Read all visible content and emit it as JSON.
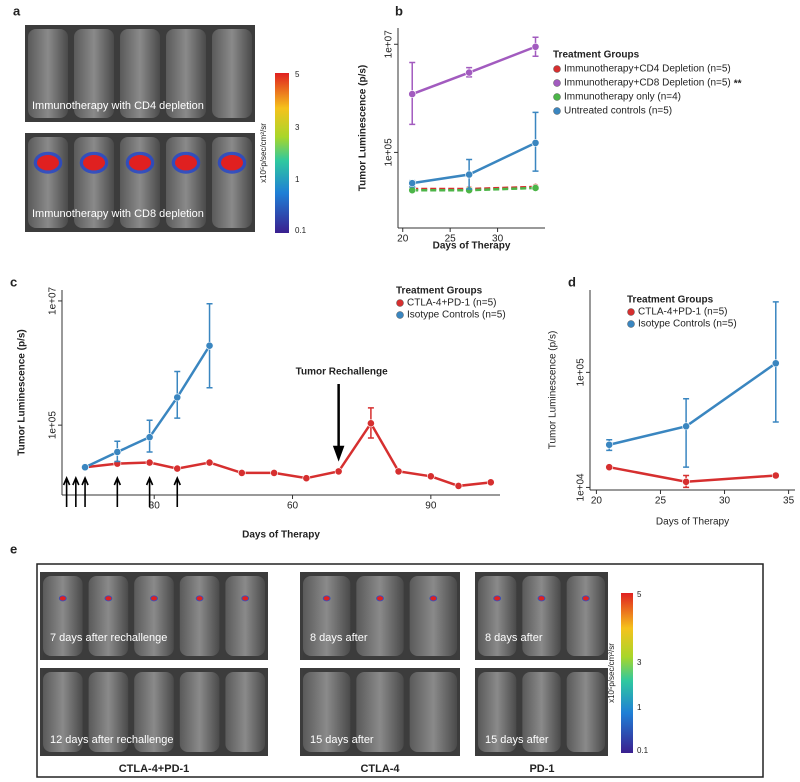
{
  "panel_labels": [
    "a",
    "b",
    "c",
    "d",
    "e"
  ],
  "panel_a": {
    "captions": [
      "Immunotherapy with CD4 depletion",
      "Immunotherapy with CD8 depletion"
    ],
    "colorbar": {
      "label": "x10⁵p/sec/cm²/sr",
      "ticks": [
        "5",
        "3",
        "1",
        "0.1"
      ]
    }
  },
  "chart_data": [
    {
      "type": "line",
      "log_y": true,
      "y_label": "Tumor Luminescence (p/s)",
      "x_label": "Days of Therapy",
      "legend_title": "Treatment Groups",
      "x": [
        21,
        27,
        34
      ],
      "xlim": [
        19.5,
        35
      ],
      "xticks": [
        20,
        25,
        30
      ],
      "ylim": [
        4000,
        20000000
      ],
      "yticks": [
        {
          "value": 100000,
          "label": "1e+05"
        },
        {
          "value": 10000000,
          "label": "1e+07"
        }
      ],
      "series": [
        {
          "name": "Immunotherapy+CD4 Depletion (n=5)",
          "color": "#d62f2f",
          "linestyle": "dashed",
          "values": [
            21000,
            21000,
            23000
          ]
        },
        {
          "name": "Immunotherapy+CD8 Depletion (n=5)",
          "color": "#a25bbf",
          "annotation": "**",
          "values": [
            1200000,
            3000000,
            9000000
          ],
          "error_bars": [
            [
              330000,
              4600000
            ],
            [
              2500000,
              3700000
            ],
            [
              6000000,
              13500000
            ]
          ]
        },
        {
          "name": "Immunotherapy only (n=4)",
          "color": "#4cb548",
          "linestyle": "dashed",
          "values": [
            20000,
            20000,
            22000
          ]
        },
        {
          "name": "Untreated controls (n=5)",
          "color": "#3a86c0",
          "values": [
            27000,
            39000,
            150000
          ],
          "error_bars": [
            [
              23000,
              30000
            ],
            [
              21000,
              74000
            ],
            [
              45000,
              550000
            ]
          ]
        }
      ]
    },
    {
      "type": "line",
      "log_y": true,
      "y_label": "Tumor Luminescence (p/s)",
      "x_label": "Days of Therapy",
      "legend_title": "Treatment Groups",
      "xlim": [
        10,
        105
      ],
      "xticks": [
        30,
        60,
        90
      ],
      "ylim": [
        7500,
        15000000
      ],
      "yticks": [
        {
          "value": 100000,
          "label": "1e+05"
        },
        {
          "value": 10000000,
          "label": "1e+07"
        }
      ],
      "annotation": {
        "text": "Tumor Rechallenge",
        "x": 70
      },
      "treatment_days": [
        11,
        13,
        15,
        22,
        29,
        35
      ],
      "series": [
        {
          "name": "CTLA-4+PD-1 (n=5)",
          "color": "#d62f2f",
          "x": [
            15,
            22,
            29,
            35,
            42,
            49,
            56,
            63,
            70,
            77,
            83,
            90,
            96,
            103
          ],
          "values": [
            21000,
            24000,
            25000,
            20000,
            25000,
            17000,
            17000,
            14000,
            18000,
            107000,
            18000,
            15000,
            10500,
            12000
          ],
          "error_bars": [
            null,
            null,
            null,
            null,
            null,
            null,
            null,
            null,
            null,
            [
              62000,
              190000
            ],
            null,
            null,
            null,
            null
          ]
        },
        {
          "name": "Isotype Controls (n=5)",
          "color": "#3a86c0",
          "x": [
            15,
            22,
            29,
            35,
            42
          ],
          "values": [
            21000,
            37000,
            64000,
            280000,
            1900000
          ],
          "error_bars": [
            null,
            [
              26000,
              55000
            ],
            [
              37000,
              120000
            ],
            [
              130000,
              730000
            ],
            [
              400000,
              9000000
            ]
          ]
        }
      ]
    },
    {
      "type": "line",
      "log_y": true,
      "y_label": "Tumor Luminescence (p/s)",
      "x_label": "Days of Therapy",
      "legend_title": "Treatment Groups",
      "x": [
        21,
        27,
        34
      ],
      "xlim": [
        19.5,
        35.5
      ],
      "xticks": [
        20,
        25,
        30,
        35
      ],
      "ylim": [
        9500,
        520000
      ],
      "yticks": [
        {
          "value": 10000,
          "label": "1e+04"
        },
        {
          "value": 100000,
          "label": "1e+05"
        }
      ],
      "series": [
        {
          "name": "CTLA-4+PD-1 (n=5)",
          "color": "#d62f2f",
          "values": [
            15000,
            11200,
            12700
          ],
          "error_bars": [
            null,
            [
              10000,
              12700
            ],
            null
          ]
        },
        {
          "name": "Isotype Controls (n=5)",
          "color": "#3a86c0",
          "values": [
            23500,
            34000,
            120000
          ],
          "error_bars": [
            [
              21000,
              26000
            ],
            [
              15000,
              59000
            ],
            [
              37000,
              410000
            ]
          ]
        }
      ]
    }
  ],
  "panel_e": {
    "groups": [
      {
        "label": "CTLA-4+PD-1",
        "captions": [
          "7 days after rechallenge",
          "12 days after rechallenge"
        ]
      },
      {
        "label": "CTLA-4",
        "captions": [
          "8 days after",
          "15 days after"
        ]
      },
      {
        "label": "PD-1",
        "captions": [
          "8 days after",
          "15 days after"
        ]
      }
    ],
    "colorbar": {
      "label": "x10⁵p/sec/cm²/sr",
      "ticks": [
        "5",
        "3",
        "1",
        "0.1"
      ]
    }
  }
}
